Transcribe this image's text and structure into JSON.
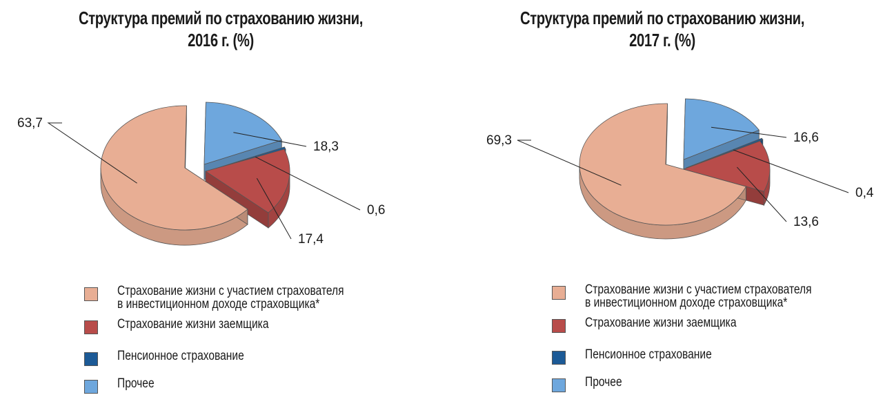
{
  "charts": [
    {
      "title_line1": "Структура премий по страхованию жизни,",
      "title_line2": "2016 г. (%)"
    },
    {
      "title_line1": "Структура премий по страхованию жизни,",
      "title_line2": "2017 г. (%)"
    }
  ],
  "legend": [
    {
      "line1": "Страхование жизни с участием страхователя",
      "line2": "в инвестиционном доходе страховщика*",
      "color": "#e8ae94"
    },
    {
      "line1": "Страхование жизни заемщика",
      "line2": "",
      "color": "#b84c4a"
    },
    {
      "line1": "Пенсионное страхование",
      "line2": "",
      "color": "#1c5a96"
    },
    {
      "line1": "Прочее",
      "line2": "",
      "color": "#6ea7dd"
    }
  ],
  "chart_data": [
    {
      "type": "pie",
      "title": "Структура премий по страхованию жизни, 2016 г. (%)",
      "categories": [
        "Страхование жизни с участием страхователя в инвестиционном доходе страховщика*",
        "Страхование жизни заемщика",
        "Пенсионное страхование",
        "Прочее"
      ],
      "values": [
        63.7,
        17.4,
        0.6,
        18.3
      ],
      "value_labels": [
        "63,7",
        "17,4",
        "0,6",
        "18,3"
      ],
      "colors": [
        "#e8ae94",
        "#b84c4a",
        "#1c5a96",
        "#6ea7dd"
      ],
      "exploded": true,
      "style": "3d",
      "legend_position": "bottom"
    },
    {
      "type": "pie",
      "title": "Структура премий по страхованию жизни, 2017 г. (%)",
      "categories": [
        "Страхование жизни с участием страхователя в инвестиционном доходе страховщика*",
        "Страхование жизни заемщика",
        "Пенсионное страхование",
        "Прочее"
      ],
      "values": [
        69.3,
        13.6,
        0.4,
        16.6
      ],
      "value_labels": [
        "69,3",
        "13,6",
        "0,4",
        "16,6"
      ],
      "colors": [
        "#e8ae94",
        "#b84c4a",
        "#1c5a96",
        "#6ea7dd"
      ],
      "exploded": true,
      "style": "3d",
      "legend_position": "bottom"
    }
  ]
}
